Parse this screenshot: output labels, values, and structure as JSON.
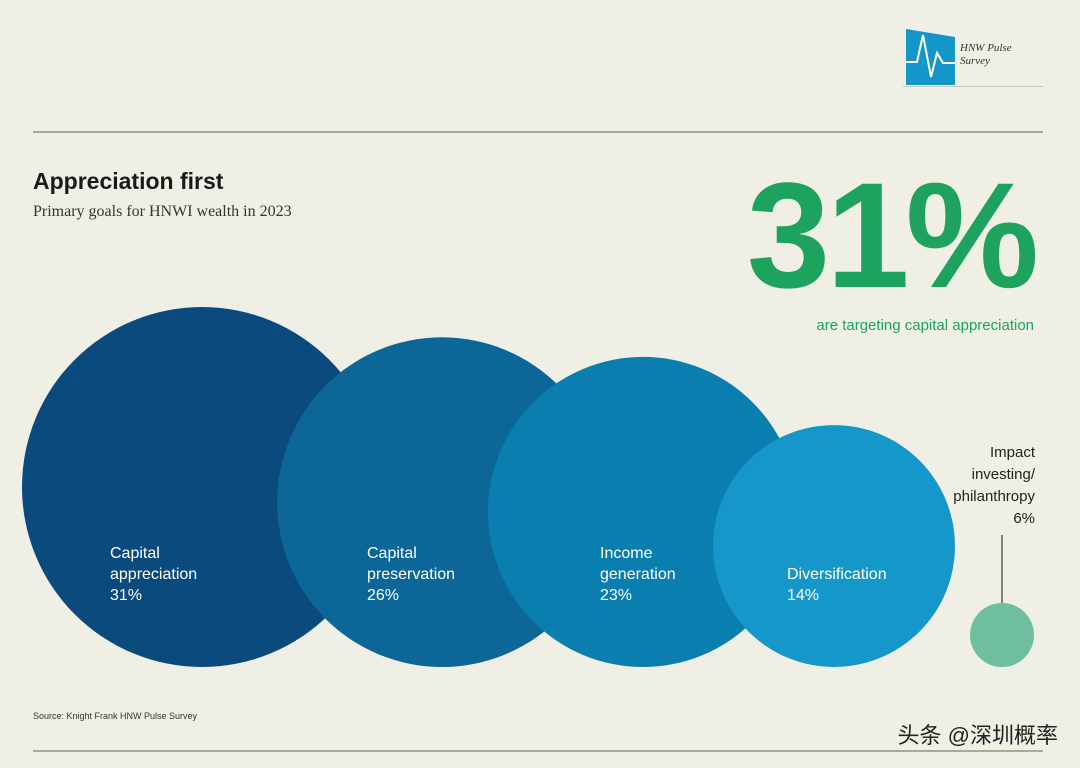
{
  "logo": {
    "text_line1": "HNW Pulse",
    "text_line2": "Survey"
  },
  "chart_data": {
    "type": "bubble",
    "title": "Appreciation first",
    "subtitle": "Primary goals for HNWI wealth in 2023",
    "unit": "%",
    "categories": [
      "Capital appreciation",
      "Capital preservation",
      "Income generation",
      "Diversification",
      "Impact investing/ philanthropy"
    ],
    "values": [
      31,
      26,
      23,
      14,
      6
    ],
    "labels": [
      {
        "line1": "Capital",
        "line2": "appreciation",
        "value": "31%"
      },
      {
        "line1": "Capital",
        "line2": "preservation",
        "value": "26%"
      },
      {
        "line1": "Income",
        "line2": "generation",
        "value": "23%"
      },
      {
        "line1": "Diversification",
        "line2": "",
        "value": "14%"
      },
      {
        "line1": "Impact",
        "line2": "investing/",
        "line3": "philanthropy",
        "value": "6%"
      }
    ],
    "colors": [
      "#0b4a7d",
      "#0c6698",
      "#0b7eb0",
      "#1597c9",
      "#6fbe9f"
    ],
    "highlight": {
      "value": "31%",
      "caption": "are targeting capital appreciation",
      "color": "#1ea35e"
    },
    "source": "Source: Knight Frank HNW Pulse Survey"
  },
  "watermark": "头条 @深圳概率"
}
